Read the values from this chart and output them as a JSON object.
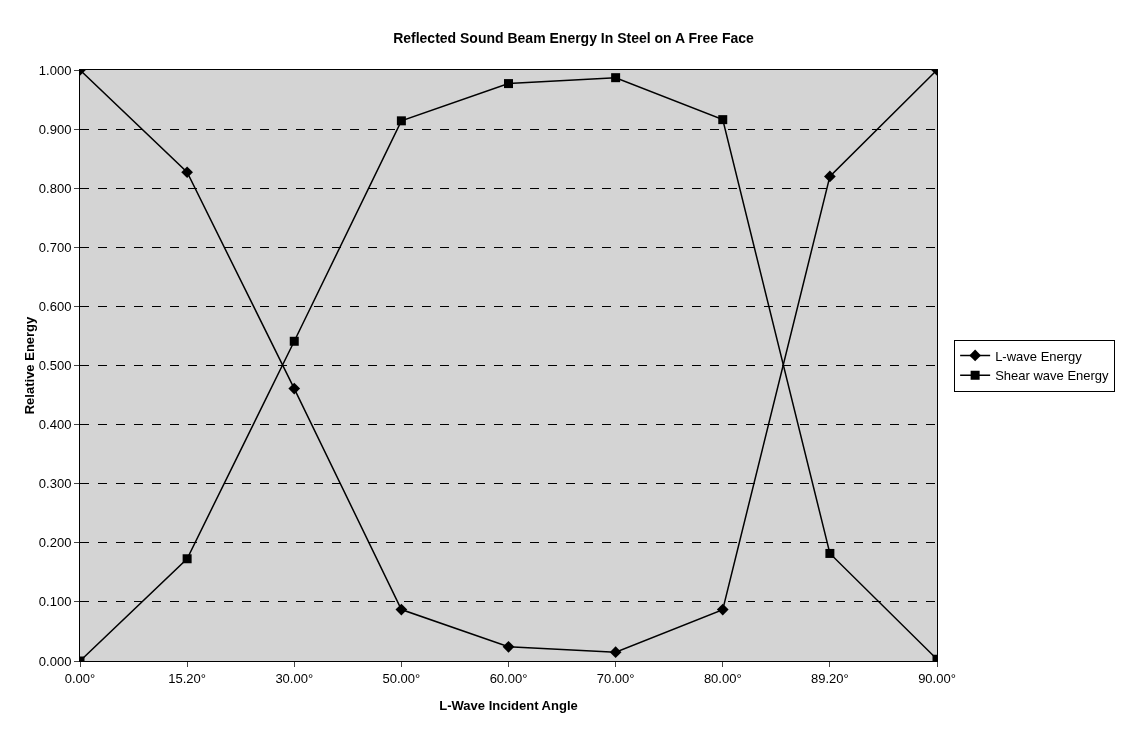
{
  "chart_data": {
    "type": "line",
    "title": "Reflected Sound Beam Energy In Steel on A Free Face",
    "xlabel": "L-Wave Incident Angle",
    "ylabel": "Relative Energy",
    "categories": [
      "0.00°",
      "15.20°",
      "30.00°",
      "50.00°",
      "60.00°",
      "70.00°",
      "80.00°",
      "89.20°",
      "90.00°"
    ],
    "series": [
      {
        "name": "L-wave Energy",
        "color": "#000000",
        "marker": "diamond",
        "values": [
          1.0,
          0.827,
          0.461,
          0.087,
          0.024,
          0.015,
          0.087,
          0.82,
          1.0
        ]
      },
      {
        "name": "Shear wave Energy",
        "color": "#000000",
        "marker": "square",
        "values": [
          0.0,
          0.173,
          0.541,
          0.914,
          0.977,
          0.987,
          0.916,
          0.182,
          0.003
        ]
      }
    ],
    "ylim": [
      0,
      1
    ],
    "yticks": [
      {
        "value": 0,
        "label": "0.000"
      },
      {
        "value": 0.1,
        "label": "0.100"
      },
      {
        "value": 0.2,
        "label": "0.200"
      },
      {
        "value": 0.3,
        "label": "0.300"
      },
      {
        "value": 0.4,
        "label": "0.400"
      },
      {
        "value": 0.5,
        "label": "0.500"
      },
      {
        "value": 0.6,
        "label": "0.600"
      },
      {
        "value": 0.7,
        "label": "0.700"
      },
      {
        "value": 0.8,
        "label": "0.800"
      },
      {
        "value": 0.9,
        "label": "0.900"
      },
      {
        "value": 1,
        "label": "1.000"
      }
    ],
    "grid": "y",
    "legend": "right",
    "line_style": "solid"
  }
}
